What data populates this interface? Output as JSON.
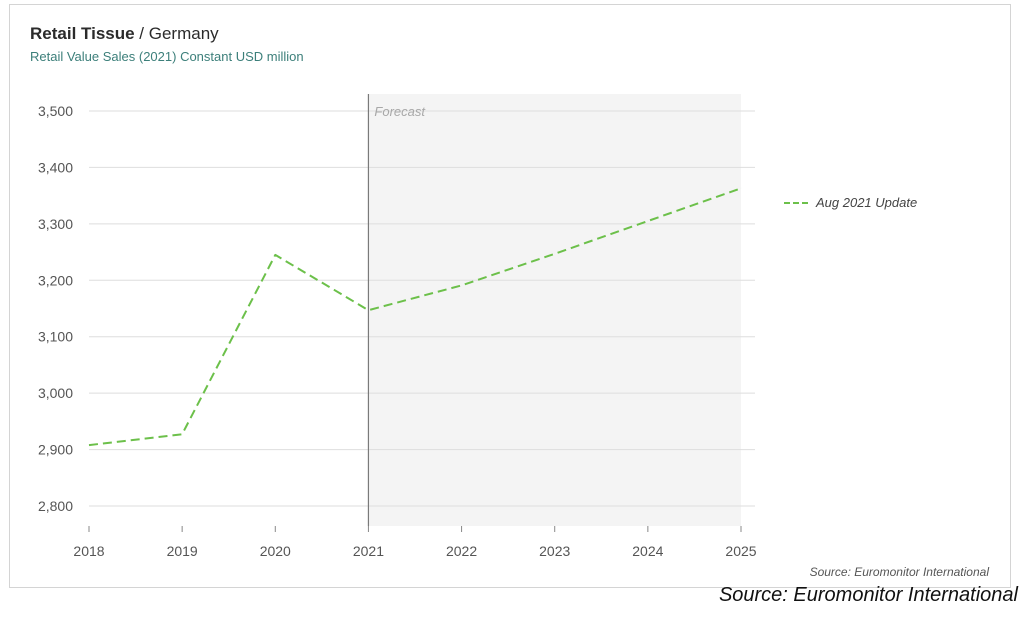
{
  "chart_data": {
    "type": "line",
    "title_main": "Retail Tissue",
    "title_separator": " / ",
    "title_region": "Germany",
    "subtitle": "Retail Value Sales (2021) Constant USD million",
    "x": [
      "2018",
      "2019",
      "2020",
      "2021",
      "2022",
      "2023",
      "2024",
      "2025"
    ],
    "series": [
      {
        "name": "Aug 2021 Update",
        "values": [
          2908,
          2927,
          3245,
          3147,
          3191,
          3247,
          3305,
          3363
        ]
      }
    ],
    "ylim": [
      2800,
      3500
    ],
    "yticks": [
      2800,
      2900,
      3000,
      3100,
      3200,
      3300,
      3400,
      3500
    ],
    "ytick_labels": [
      "2,800",
      "2,900",
      "3,000",
      "3,100",
      "3,200",
      "3,300",
      "3,400",
      "3,500"
    ],
    "forecast_start": "2021",
    "forecast_label": "Forecast",
    "grid": true,
    "legend_position": "right",
    "line_color": "#6cc04a",
    "line_style": "dashed",
    "forecast_fill": "#f4f4f4"
  },
  "source_inner": "Source: Euromonitor International",
  "source_outer": "Source: Euromonitor International"
}
